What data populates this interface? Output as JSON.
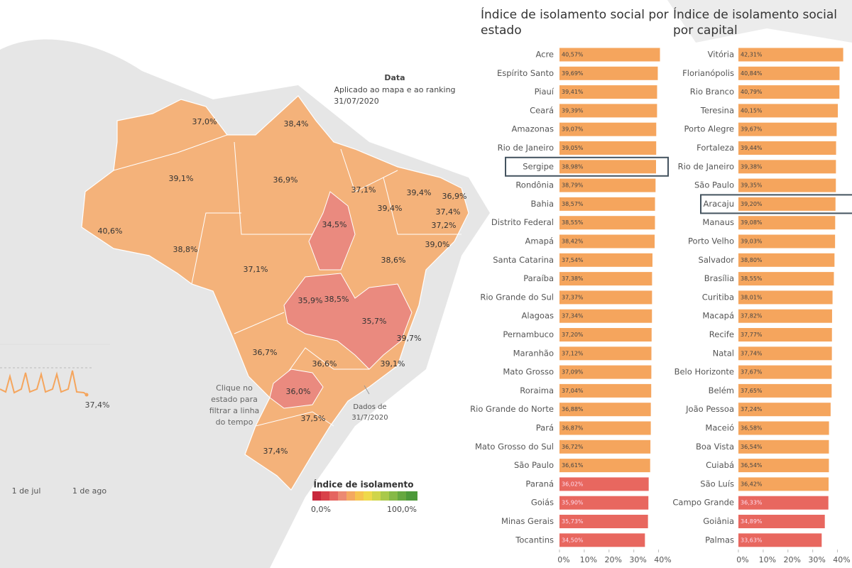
{
  "map": {
    "date_title": "Data",
    "date_subtitle": "Aplicado ao mapa e ao ranking",
    "date": "31/07/2020",
    "hint": [
      "Clique no",
      "estado para",
      "filtrar a linha",
      "do tempo"
    ],
    "note": [
      "Dados de",
      "31/7/2020"
    ],
    "labels": [
      {
        "value": 37.0,
        "label": "37,0%"
      },
      {
        "value": 38.4,
        "label": "38,4%"
      },
      {
        "value": 39.1,
        "label": "39,1%"
      },
      {
        "value": 36.9,
        "label": "36,9%"
      },
      {
        "value": 37.1,
        "label": "37,1%"
      },
      {
        "value": 39.4,
        "label": "39,4%"
      },
      {
        "value": 36.9,
        "label": "36,9%"
      },
      {
        "value": 39.4,
        "label": "39,4%"
      },
      {
        "value": 37.4,
        "label": "37,4%"
      },
      {
        "value": 37.2,
        "label": "37,2%"
      },
      {
        "value": 40.6,
        "label": "40,6%"
      },
      {
        "value": 34.5,
        "label": "34,5%"
      },
      {
        "value": 39.0,
        "label": "39,0%"
      },
      {
        "value": 38.8,
        "label": "38,8%"
      },
      {
        "value": 38.6,
        "label": "38,6%"
      },
      {
        "value": 37.1,
        "label": "37,1%"
      },
      {
        "value": 35.9,
        "label": "35,9%"
      },
      {
        "value": 38.5,
        "label": "38,5%"
      },
      {
        "value": 35.7,
        "label": "35,7%"
      },
      {
        "value": 39.7,
        "label": "39,7%"
      },
      {
        "value": 36.7,
        "label": "36,7%"
      },
      {
        "value": 36.6,
        "label": "36,6%"
      },
      {
        "value": 39.1,
        "label": "39,1%"
      },
      {
        "value": 36.0,
        "label": "36,0%"
      },
      {
        "value": 37.5,
        "label": "37,5%"
      },
      {
        "value": 37.4,
        "label": "37,4%"
      }
    ],
    "legend": {
      "title": "Índice de isolamento",
      "min": {
        "value": 0,
        "label": "0,0%"
      },
      "max": {
        "value": 100,
        "label": "100,0%"
      }
    }
  },
  "timeline": {
    "last": {
      "value": 37.4,
      "label": "37,4%"
    },
    "xticks": [
      "1 de jul",
      "1 de ago"
    ]
  },
  "chart_data": [
    {
      "type": "bar",
      "orientation": "horizontal",
      "title": "Índice de isolamento social por estado",
      "categories": [
        "Acre",
        "Espírito Santo",
        "Piauí",
        "Ceará",
        "Amazonas",
        "Rio de Janeiro",
        "Sergipe",
        "Rondônia",
        "Bahia",
        "Distrito Federal",
        "Amapá",
        "Santa Catarina",
        "Paraíba",
        "Rio Grande do Sul",
        "Alagoas",
        "Pernambuco",
        "Maranhão",
        "Mato Grosso",
        "Roraima",
        "Rio Grande do Norte",
        "Pará",
        "Mato Grosso do Sul",
        "São Paulo",
        "Paraná",
        "Goiás",
        "Minas Gerais",
        "Tocantins"
      ],
      "values": [
        40.57,
        39.69,
        39.41,
        39.39,
        39.07,
        39.05,
        38.98,
        38.79,
        38.57,
        38.55,
        38.42,
        37.54,
        37.38,
        37.37,
        37.34,
        37.2,
        37.12,
        37.09,
        37.04,
        36.88,
        36.87,
        36.72,
        36.61,
        36.02,
        35.9,
        35.73,
        34.5
      ],
      "value_labels": [
        "40,57%",
        "39,69%",
        "39,41%",
        "39,39%",
        "39,07%",
        "39,05%",
        "38,98%",
        "38,79%",
        "38,57%",
        "38,55%",
        "38,42%",
        "37,54%",
        "37,38%",
        "37,37%",
        "37,34%",
        "37,20%",
        "37,12%",
        "37,09%",
        "37,04%",
        "36,88%",
        "36,87%",
        "36,72%",
        "36,61%",
        "36,02%",
        "35,90%",
        "35,73%",
        "34,50%"
      ],
      "colors": [
        "#f5a55d",
        "#f5a55d",
        "#f5a55d",
        "#f5a55d",
        "#f5a55d",
        "#f5a55d",
        "#f5a55d",
        "#f5a55d",
        "#f5a55d",
        "#f5a55d",
        "#f5a55d",
        "#f5a55d",
        "#f5a55d",
        "#f5a55d",
        "#f5a55d",
        "#f5a55d",
        "#f5a55d",
        "#f5a55d",
        "#f5a55d",
        "#f5a55d",
        "#f5a55d",
        "#f5a55d",
        "#f5a55d",
        "#e8675f",
        "#e8675f",
        "#e8675f",
        "#e8675f"
      ],
      "selected": 6,
      "xlim": [
        0,
        43
      ],
      "xticks": [
        {
          "value": 0,
          "label": "0%"
        },
        {
          "value": 10,
          "label": "10%"
        },
        {
          "value": 20,
          "label": "20%"
        },
        {
          "value": 30,
          "label": "30%"
        },
        {
          "value": 40,
          "label": "40%"
        }
      ]
    },
    {
      "type": "bar",
      "orientation": "horizontal",
      "title": "Índice de isolamento social por capital",
      "categories": [
        "Vitória",
        "Florianópolis",
        "Rio Branco",
        "Teresina",
        "Porto Alegre",
        "Fortaleza",
        "Rio de Janeiro",
        "São Paulo",
        "Aracaju",
        "Manaus",
        "Porto Velho",
        "Salvador",
        "Brasília",
        "Curitiba",
        "Macapá",
        "Recife",
        "Natal",
        "Belo Horizonte",
        "Belém",
        "João Pessoa",
        "Maceió",
        "Boa Vista",
        "Cuiabá",
        "São Luís",
        "Campo Grande",
        "Goiânia",
        "Palmas"
      ],
      "values": [
        42.31,
        40.84,
        40.79,
        40.15,
        39.67,
        39.44,
        39.38,
        39.35,
        39.2,
        39.08,
        39.03,
        38.8,
        38.55,
        38.01,
        37.82,
        37.77,
        37.74,
        37.67,
        37.65,
        37.24,
        36.58,
        36.54,
        36.54,
        36.42,
        36.33,
        34.89,
        33.63
      ],
      "value_labels": [
        "42,31%",
        "40,84%",
        "40,79%",
        "40,15%",
        "39,67%",
        "39,44%",
        "39,38%",
        "39,35%",
        "39,20%",
        "39,08%",
        "39,03%",
        "38,80%",
        "38,55%",
        "38,01%",
        "37,82%",
        "37,77%",
        "37,74%",
        "37,67%",
        "37,65%",
        "37,24%",
        "36,58%",
        "36,54%",
        "36,54%",
        "36,42%",
        "36,33%",
        "34,89%",
        "33,63%"
      ],
      "colors": [
        "#f5a55d",
        "#f5a55d",
        "#f5a55d",
        "#f5a55d",
        "#f5a55d",
        "#f5a55d",
        "#f5a55d",
        "#f5a55d",
        "#f5a55d",
        "#f5a55d",
        "#f5a55d",
        "#f5a55d",
        "#f5a55d",
        "#f5a55d",
        "#f5a55d",
        "#f5a55d",
        "#f5a55d",
        "#f5a55d",
        "#f5a55d",
        "#f5a55d",
        "#f5a55d",
        "#f5a55d",
        "#f5a55d",
        "#f5a55d",
        "#e8675f",
        "#e8675f",
        "#e8675f"
      ],
      "selected": 8,
      "xlim": [
        0,
        43
      ],
      "xticks": [
        {
          "value": 0,
          "label": "0%"
        },
        {
          "value": 10,
          "label": "10%"
        },
        {
          "value": 20,
          "label": "20%"
        },
        {
          "value": 30,
          "label": "30%"
        },
        {
          "value": 40,
          "label": "40%"
        }
      ]
    }
  ]
}
